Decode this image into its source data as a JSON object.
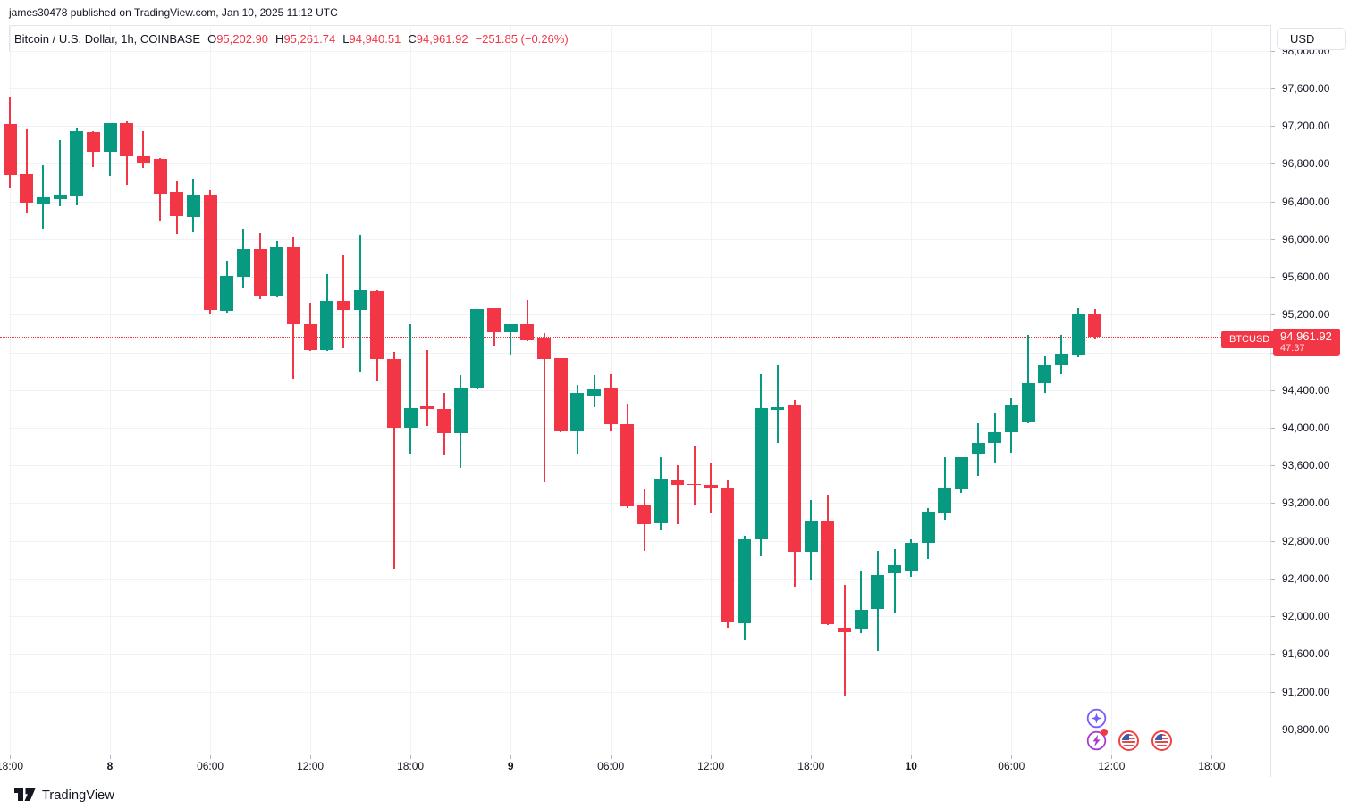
{
  "attribution": {
    "text": "james30478 published on TradingView.com, Jan 10, 2025 11:12 UTC"
  },
  "header": {
    "title": "Bitcoin / U.S. Dollar, 1h, COINBASE",
    "o_label": "O",
    "o": "95,202.90",
    "h_label": "H",
    "h": "95,261.74",
    "l_label": "L",
    "l": "94,940.51",
    "c_label": "C",
    "c": "94,961.92",
    "change": "−251.85 (−0.26%)"
  },
  "price_axis": {
    "currency": "USD"
  },
  "price_label": {
    "symbol": "BTCUSD",
    "price": "94,961.92",
    "countdown": "47:37"
  },
  "footer": {
    "logo_text": "TradingView"
  },
  "icons": [
    "sparkle-icon",
    "lightning-icon",
    "us-flag-icon",
    "us-flag-icon"
  ],
  "colors": {
    "up": "#089981",
    "down": "#F23645",
    "text": "#131722",
    "grid": "#F0F2F5",
    "border": "#E0E3EB",
    "tick": "#B2B5BE",
    "sparkle": "#7A5CFA",
    "lightning": "#A63BD4",
    "flag_ring": "#EF4444"
  },
  "chart_data": {
    "type": "candlestick",
    "symbol": "BTCUSD",
    "exchange": "COINBASE",
    "interval": "1h",
    "title": "Bitcoin / U.S. Dollar, 1h, COINBASE",
    "last_bar": {
      "open": 95202.9,
      "high": 95261.74,
      "low": 94940.51,
      "close": 94961.92,
      "change": -251.85,
      "change_pct": -0.26
    },
    "last_price": 94961.92,
    "y_axis": {
      "currency": "USD",
      "max": 98000,
      "min": 90800,
      "step": 400
    },
    "price_axis_labels": [
      {
        "p": 98000,
        "t": "98,000.00"
      },
      {
        "p": 97600,
        "t": "97,600.00"
      },
      {
        "p": 97200,
        "t": "97,200.00"
      },
      {
        "p": 96800,
        "t": "96,800.00"
      },
      {
        "p": 96400,
        "t": "96,400.00"
      },
      {
        "p": 96000,
        "t": "96,000.00"
      },
      {
        "p": 95600,
        "t": "95,600.00"
      },
      {
        "p": 95200,
        "t": "95,200.00"
      },
      {
        "p": 94400,
        "t": "94,400.00"
      },
      {
        "p": 94000,
        "t": "94,000.00"
      },
      {
        "p": 93600,
        "t": "93,600.00"
      },
      {
        "p": 93200,
        "t": "93,200.00"
      },
      {
        "p": 92800,
        "t": "92,800.00"
      },
      {
        "p": 92400,
        "t": "92,400.00"
      },
      {
        "p": 92000,
        "t": "92,000.00"
      },
      {
        "p": 91600,
        "t": "91,600.00"
      },
      {
        "p": 91200,
        "t": "91,200.00"
      },
      {
        "p": 90800,
        "t": "90,800.00"
      }
    ],
    "time_ticks": [
      {
        "i": 0,
        "label": "18:00",
        "bold": false
      },
      {
        "i": 6,
        "label": "8",
        "bold": true
      },
      {
        "i": 12,
        "label": "06:00",
        "bold": false
      },
      {
        "i": 18,
        "label": "12:00",
        "bold": false
      },
      {
        "i": 24,
        "label": "18:00",
        "bold": false
      },
      {
        "i": 30,
        "label": "9",
        "bold": true
      },
      {
        "i": 36,
        "label": "06:00",
        "bold": false
      },
      {
        "i": 42,
        "label": "12:00",
        "bold": false
      },
      {
        "i": 48,
        "label": "18:00",
        "bold": false
      },
      {
        "i": 54,
        "label": "10",
        "bold": true
      },
      {
        "i": 60,
        "label": "06:00",
        "bold": false
      },
      {
        "i": 66,
        "label": "12:00",
        "bold": false
      },
      {
        "i": 72,
        "label": "18:00",
        "bold": false
      }
    ],
    "candles": [
      [
        "Jan 7 18:00",
        97218,
        97502,
        96547,
        96680
      ],
      [
        "Jan 7 19:00",
        96690,
        97164,
        96272,
        96389
      ],
      [
        "Jan 7 20:00",
        96377,
        96784,
        96099,
        96446
      ],
      [
        "Jan 7 21:00",
        96424,
        97050,
        96348,
        96471
      ],
      [
        "Jan 7 22:00",
        96462,
        97183,
        96357,
        97145
      ],
      [
        "Jan 7 23:00",
        97135,
        97150,
        96765,
        96927
      ],
      [
        "Jan 8 00:00",
        96927,
        97235,
        96671,
        97230
      ],
      [
        "Jan 8 01:00",
        97230,
        97249,
        96576,
        96879
      ],
      [
        "Jan 8 02:00",
        96879,
        97145,
        96756,
        96813
      ],
      [
        "Jan 8 03:00",
        96851,
        96860,
        96196,
        96481
      ],
      [
        "Jan 8 04:00",
        96500,
        96614,
        96054,
        96244
      ],
      [
        "Jan 8 05:00",
        96235,
        96643,
        96073,
        96471
      ],
      [
        "Jan 8 06:00",
        96471,
        96520,
        95200,
        95248
      ],
      [
        "Jan 8 07:00",
        95238,
        95770,
        95219,
        95608
      ],
      [
        "Jan 8 08:00",
        95599,
        96101,
        95485,
        95893
      ],
      [
        "Jan 8 09:00",
        95893,
        96064,
        95362,
        95390
      ],
      [
        "Jan 8 10:00",
        95390,
        95978,
        95385,
        95912
      ],
      [
        "Jan 8 11:00",
        95912,
        96026,
        94518,
        95096
      ],
      [
        "Jan 8 12:00",
        95096,
        95324,
        94812,
        94821
      ],
      [
        "Jan 8 13:00",
        94821,
        95627,
        94815,
        95343
      ],
      [
        "Jan 8 14:00",
        95343,
        95827,
        94840,
        95248
      ],
      [
        "Jan 8 15:00",
        95248,
        96045,
        94584,
        95457
      ],
      [
        "Jan 8 16:00",
        95447,
        95460,
        94490,
        94727
      ],
      [
        "Jan 8 17:00",
        94727,
        94802,
        92498,
        93996
      ],
      [
        "Jan 8 18:00",
        93996,
        95096,
        93721,
        94205
      ],
      [
        "Jan 8 19:00",
        94224,
        94821,
        94015,
        94195
      ],
      [
        "Jan 8 20:00",
        94195,
        94366,
        93702,
        93939
      ],
      [
        "Jan 8 21:00",
        93939,
        94556,
        93569,
        94423
      ],
      [
        "Jan 8 22:00",
        94414,
        95260,
        94410,
        95258
      ],
      [
        "Jan 8 23:00",
        95267,
        95270,
        94869,
        95011
      ],
      [
        "Jan 9 00:00",
        95011,
        95099,
        94765,
        95096
      ],
      [
        "Jan 9 01:00",
        95096,
        95353,
        94920,
        94926
      ],
      [
        "Jan 9 02:00",
        94954,
        95002,
        93418,
        94727
      ],
      [
        "Jan 9 03:00",
        94736,
        94740,
        93950,
        93958
      ],
      [
        "Jan 9 04:00",
        93958,
        94451,
        93721,
        94366
      ],
      [
        "Jan 9 05:00",
        94338,
        94556,
        94214,
        94404
      ],
      [
        "Jan 9 06:00",
        94414,
        94565,
        93961,
        94034
      ],
      [
        "Jan 9 07:00",
        94034,
        94243,
        93143,
        93162
      ],
      [
        "Jan 9 08:00",
        93172,
        93342,
        92688,
        92973
      ],
      [
        "Jan 9 09:00",
        92982,
        93683,
        92916,
        93456
      ],
      [
        "Jan 9 10:00",
        93446,
        93598,
        92973,
        93389
      ],
      [
        "Jan 9 11:00",
        93405,
        93807,
        93172,
        93395
      ],
      [
        "Jan 9 12:00",
        93389,
        93627,
        93096,
        93351
      ],
      [
        "Jan 9 13:00",
        93361,
        93446,
        91873,
        91929
      ],
      [
        "Jan 9 14:00",
        91919,
        92858,
        91748,
        92811
      ],
      [
        "Jan 9 15:00",
        92811,
        94565,
        92631,
        94205
      ],
      [
        "Jan 9 16:00",
        94190,
        94660,
        93835,
        94215
      ],
      [
        "Jan 9 17:00",
        94233,
        94290,
        92309,
        92678
      ],
      [
        "Jan 9 18:00",
        92678,
        93229,
        92384,
        93011
      ],
      [
        "Jan 9 19:00",
        93011,
        93285,
        91905,
        91910
      ],
      [
        "Jan 9 20:00",
        91881,
        92337,
        91161,
        91834
      ],
      [
        "Jan 9 21:00",
        91866,
        92483,
        91822,
        92068
      ],
      [
        "Jan 9 22:00",
        92080,
        92697,
        91635,
        92440
      ],
      [
        "Jan 9 23:00",
        92459,
        92707,
        92033,
        92545
      ],
      [
        "Jan 10 00:00",
        92469,
        92820,
        92420,
        92773
      ],
      [
        "Jan 10 01:00",
        92773,
        93143,
        92602,
        93105
      ],
      [
        "Jan 10 02:00",
        93096,
        93683,
        93021,
        93351
      ],
      [
        "Jan 10 03:00",
        93342,
        93690,
        93304,
        93683
      ],
      [
        "Jan 10 04:00",
        93721,
        94043,
        93484,
        93835
      ],
      [
        "Jan 10 05:00",
        93835,
        94160,
        93627,
        93948
      ],
      [
        "Jan 10 06:00",
        93948,
        94309,
        93731,
        94233
      ],
      [
        "Jan 10 07:00",
        94053,
        94982,
        94043,
        94470
      ],
      [
        "Jan 10 08:00",
        94470,
        94755,
        94366,
        94660
      ],
      [
        "Jan 10 09:00",
        94660,
        94982,
        94565,
        94783
      ],
      [
        "Jan 10 10:00",
        94765,
        95267,
        94746,
        95200
      ],
      [
        "Jan 10 11:00",
        95202.9,
        95261.74,
        94940.51,
        94961.92
      ]
    ]
  }
}
